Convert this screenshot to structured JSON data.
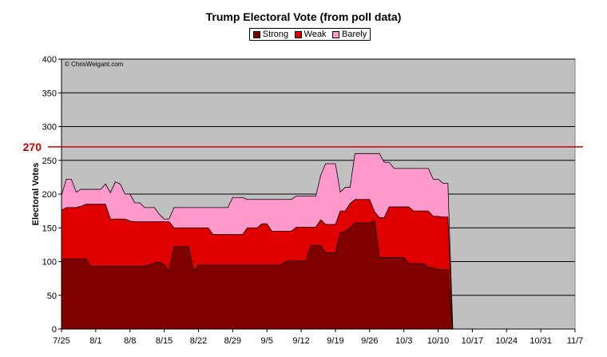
{
  "chart_data": {
    "type": "area",
    "title": "Trump Electoral Vote (from poll data)",
    "ylabel": "Electoral Votes",
    "xlabel": "",
    "ylim": [
      0,
      400
    ],
    "yticks": [
      0,
      50,
      100,
      150,
      200,
      250,
      300,
      350,
      400
    ],
    "xticks": [
      "7/25",
      "8/1",
      "8/8",
      "8/15",
      "8/22",
      "8/29",
      "9/5",
      "9/12",
      "9/19",
      "9/26",
      "10/3",
      "10/10",
      "10/17",
      "10/24",
      "10/31",
      "11/7"
    ],
    "xrange_days": [
      0,
      105
    ],
    "grid": true,
    "watermark": "© ChrisWeigant.com",
    "reference_line": {
      "value": 270,
      "label": "270",
      "color": "#cc0000"
    },
    "legend": [
      "Strong",
      "Weak",
      "Barely"
    ],
    "colors": {
      "Strong": "#800000",
      "Weak": "#e00000",
      "Barely": "#ff99cc",
      "plot_bg": "#c0c0c0"
    },
    "x_days": [
      0,
      1,
      2,
      3,
      4,
      5,
      6,
      7,
      8,
      9,
      10,
      11,
      12,
      13,
      14,
      15,
      16,
      17,
      18,
      19,
      20,
      21,
      22,
      23,
      24,
      25,
      26,
      27,
      28,
      29,
      30,
      31,
      32,
      33,
      34,
      35,
      36,
      37,
      38,
      39,
      40,
      41,
      42,
      43,
      44,
      45,
      46,
      47,
      48,
      49,
      50,
      51,
      52,
      53,
      54,
      55,
      56,
      57,
      58,
      59,
      60,
      61,
      62,
      63,
      64,
      65,
      66,
      67,
      68,
      69,
      70,
      71,
      72,
      73,
      74,
      75,
      76,
      77,
      78,
      79,
      80
    ],
    "series": [
      {
        "name": "Strong",
        "values": [
          104,
          104,
          104,
          104,
          104,
          104,
          93,
          93,
          93,
          93,
          93,
          93,
          93,
          93,
          93,
          93,
          93,
          93,
          95,
          98,
          99,
          95,
          86,
          122,
          122,
          122,
          122,
          86,
          95,
          95,
          95,
          95,
          95,
          95,
          95,
          95,
          95,
          95,
          95,
          95,
          95,
          95,
          95,
          95,
          95,
          95,
          101,
          101,
          101,
          101,
          101,
          124,
          124,
          124,
          113,
          113,
          113,
          142,
          145,
          150,
          157,
          157,
          157,
          157,
          161,
          106,
          106,
          106,
          106,
          106,
          106,
          97,
          97,
          97,
          97,
          91,
          91,
          88,
          88,
          88,
          0
        ]
      },
      {
        "name": "Weak",
        "values": [
          176,
          180,
          180,
          180,
          182,
          185,
          185,
          185,
          185,
          185,
          163,
          163,
          163,
          163,
          160,
          159,
          159,
          159,
          159,
          159,
          159,
          159,
          159,
          150,
          150,
          150,
          150,
          150,
          150,
          150,
          150,
          140,
          140,
          140,
          140,
          140,
          140,
          140,
          150,
          150,
          150,
          156,
          156,
          145,
          145,
          145,
          145,
          145,
          151,
          151,
          151,
          151,
          151,
          162,
          155,
          155,
          155,
          175,
          175,
          186,
          192,
          192,
          192,
          192,
          174,
          165,
          165,
          181,
          181,
          181,
          181,
          181,
          175,
          175,
          175,
          175,
          167,
          167,
          166,
          166,
          0
        ]
      },
      {
        "name": "Barely",
        "values": [
          198,
          222,
          222,
          203,
          207,
          207,
          207,
          207,
          207,
          215,
          202,
          218,
          215,
          200,
          200,
          187,
          187,
          180,
          180,
          180,
          170,
          163,
          163,
          180,
          180,
          180,
          180,
          180,
          180,
          180,
          180,
          180,
          180,
          180,
          180,
          195,
          195,
          195,
          192,
          192,
          192,
          192,
          192,
          192,
          192,
          192,
          192,
          192,
          197,
          197,
          197,
          197,
          197,
          228,
          245,
          245,
          245,
          203,
          210,
          210,
          260,
          260,
          260,
          260,
          260,
          260,
          247,
          247,
          238,
          238,
          238,
          238,
          238,
          238,
          238,
          238,
          222,
          222,
          216,
          216,
          0
        ]
      }
    ]
  }
}
